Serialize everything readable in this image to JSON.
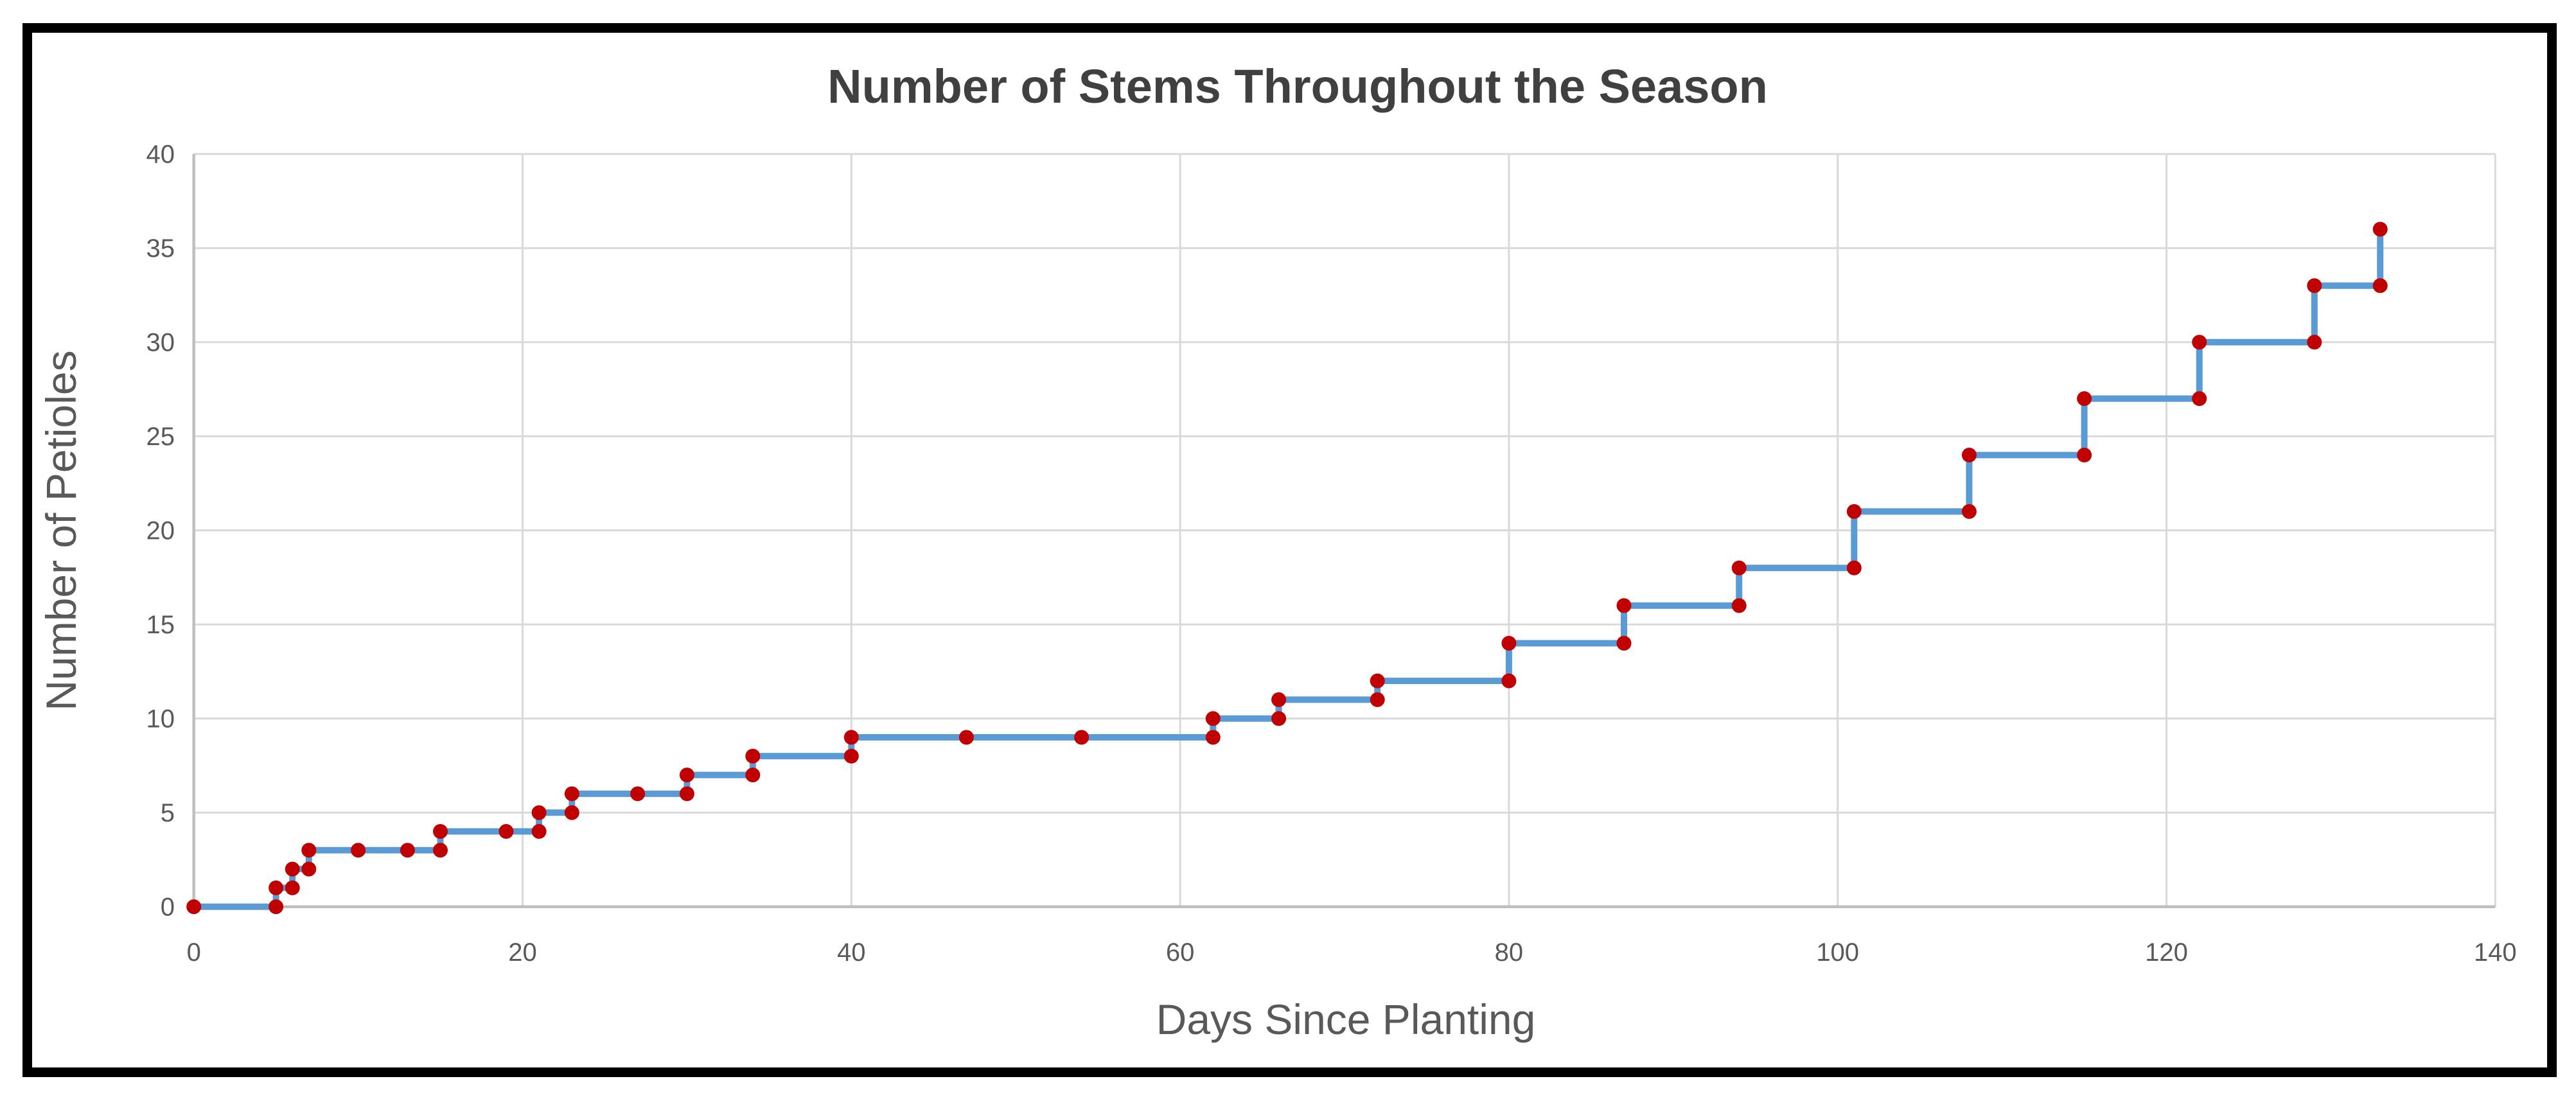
{
  "chart": {
    "title": "Number of Stems Throughout the Season",
    "x_axis_title": "Days Since Planting",
    "y_axis_title": "Number of Petioles",
    "colors": {
      "line": "#5B9BD5",
      "marker": "#C00000",
      "gridline": "#D9D9D9",
      "axis_line": "#BFBFBF",
      "tick_text": "#595959",
      "axis_title_text": "#595959",
      "title_text": "#404040",
      "frame": "#000000",
      "background": "#FFFFFF"
    }
  },
  "chart_data": {
    "type": "line",
    "title": "Number of Stems Throughout the Season",
    "xlabel": "Days Since Planting",
    "ylabel": "Number of Petioles",
    "xlim": [
      0,
      140
    ],
    "ylim": [
      0,
      40
    ],
    "x_ticks": [
      0,
      20,
      40,
      60,
      80,
      100,
      120,
      140
    ],
    "y_ticks": [
      0,
      5,
      10,
      15,
      20,
      25,
      30,
      35,
      40
    ],
    "grid": true,
    "legend": false,
    "line_style": "step-through-points",
    "series": [
      {
        "name": "Number of Petioles",
        "line_color": "#5B9BD5",
        "marker": "circle",
        "marker_color": "#C00000",
        "points": [
          [
            0,
            0
          ],
          [
            5,
            0
          ],
          [
            5,
            1
          ],
          [
            6,
            1
          ],
          [
            6,
            2
          ],
          [
            7,
            2
          ],
          [
            7,
            3
          ],
          [
            10,
            3
          ],
          [
            13,
            3
          ],
          [
            15,
            3
          ],
          [
            15,
            4
          ],
          [
            19,
            4
          ],
          [
            21,
            4
          ],
          [
            21,
            5
          ],
          [
            23,
            5
          ],
          [
            23,
            6
          ],
          [
            27,
            6
          ],
          [
            30,
            6
          ],
          [
            30,
            7
          ],
          [
            34,
            7
          ],
          [
            34,
            8
          ],
          [
            40,
            8
          ],
          [
            40,
            9
          ],
          [
            47,
            9
          ],
          [
            54,
            9
          ],
          [
            62,
            9
          ],
          [
            62,
            10
          ],
          [
            66,
            10
          ],
          [
            66,
            11
          ],
          [
            72,
            11
          ],
          [
            72,
            12
          ],
          [
            80,
            12
          ],
          [
            80,
            14
          ],
          [
            87,
            14
          ],
          [
            87,
            16
          ],
          [
            94,
            16
          ],
          [
            94,
            18
          ],
          [
            101,
            18
          ],
          [
            101,
            21
          ],
          [
            108,
            21
          ],
          [
            108,
            24
          ],
          [
            115,
            24
          ],
          [
            115,
            27
          ],
          [
            122,
            27
          ],
          [
            122,
            30
          ],
          [
            129,
            30
          ],
          [
            129,
            33
          ],
          [
            133,
            33
          ],
          [
            133,
            36
          ]
        ]
      }
    ]
  }
}
